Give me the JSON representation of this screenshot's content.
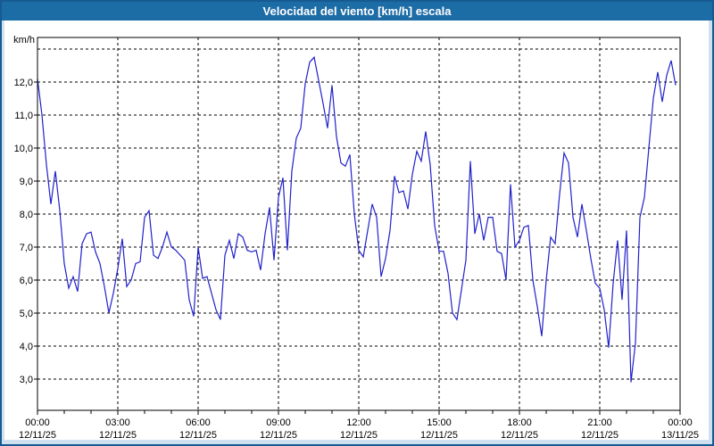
{
  "window": {
    "title": "Velocidad del viento [km/h] escala"
  },
  "colors": {
    "titlebar_bg": "#1c6ca6",
    "titlebar_text": "#ffffff",
    "window_border": "#175a92",
    "window_margin_bg": "#cfe1f1",
    "content_bg": "#ffffff",
    "plot_frame": "#000000",
    "gridline": "#000000",
    "tick_text": "#000000",
    "series_line": "#2121cc"
  },
  "y_axis": {
    "unit_label": "km/h",
    "tick_labels": [
      "12,0",
      "11,0",
      "10,0",
      "9,0",
      "8,0",
      "7,0",
      "6,0",
      "5,0",
      "4,0",
      "3,0"
    ],
    "tick_values": [
      12,
      11,
      10,
      9,
      8,
      7,
      6,
      5,
      4,
      3
    ],
    "grid_values": [
      13,
      12,
      11,
      10,
      9,
      8,
      7,
      6,
      5,
      4,
      3
    ]
  },
  "x_axis": {
    "hours_span": 24,
    "minor_tick_every_hours": 1,
    "major_tick_every_hours": 3,
    "major_ticks": [
      {
        "hour": 0,
        "time": "00:00",
        "date": "12/11/25"
      },
      {
        "hour": 3,
        "time": "03:00",
        "date": "12/11/25"
      },
      {
        "hour": 6,
        "time": "06:00",
        "date": "12/11/25"
      },
      {
        "hour": 9,
        "time": "09:00",
        "date": "12/11/25"
      },
      {
        "hour": 12,
        "time": "12:00",
        "date": "12/11/25"
      },
      {
        "hour": 15,
        "time": "15:00",
        "date": "12/11/25"
      },
      {
        "hour": 18,
        "time": "18:00",
        "date": "12/11/25"
      },
      {
        "hour": 21,
        "time": "21:00",
        "date": "12/11/25"
      },
      {
        "hour": 24,
        "time": "00:00",
        "date": "13/11/25"
      }
    ]
  },
  "chart_data": {
    "type": "line",
    "title": "Velocidad del viento [km/h] escala",
    "ylabel": "km/h",
    "xlabel": "",
    "grid": "dashed",
    "legend": "none",
    "ylim": [
      2.05,
      13.35
    ],
    "xlim_hours": [
      0,
      24
    ],
    "x_start_minutes": 0,
    "x_step_minutes": 10,
    "values": [
      12.1,
      11.0,
      9.5,
      8.3,
      9.3,
      8.1,
      6.5,
      5.75,
      6.1,
      5.65,
      7.1,
      7.4,
      7.45,
      6.85,
      6.5,
      5.8,
      5.0,
      5.6,
      6.35,
      7.25,
      5.8,
      6.0,
      6.5,
      6.55,
      7.9,
      8.1,
      6.75,
      6.65,
      7.0,
      7.45,
      7.0,
      6.9,
      6.75,
      6.6,
      5.4,
      4.9,
      7.0,
      6.05,
      6.1,
      5.6,
      5.1,
      4.8,
      6.75,
      7.2,
      6.65,
      7.4,
      7.3,
      6.9,
      6.85,
      6.9,
      6.3,
      7.4,
      8.2,
      6.6,
      8.5,
      9.1,
      6.9,
      9.3,
      10.3,
      10.6,
      11.95,
      12.6,
      12.75,
      12.05,
      11.35,
      10.6,
      11.9,
      10.35,
      9.55,
      9.45,
      9.8,
      8.0,
      6.9,
      6.7,
      7.5,
      8.3,
      7.9,
      6.1,
      6.65,
      7.5,
      9.15,
      8.65,
      8.7,
      8.15,
      9.2,
      9.9,
      9.6,
      10.5,
      9.5,
      7.65,
      6.87,
      6.87,
      6.2,
      5.0,
      4.8,
      5.7,
      6.6,
      9.6,
      7.4,
      8.0,
      7.2,
      7.9,
      7.9,
      6.87,
      6.8,
      6.0,
      8.9,
      7.0,
      7.2,
      7.6,
      7.65,
      6.0,
      5.2,
      4.3,
      6.0,
      7.3,
      7.1,
      8.6,
      9.85,
      9.55,
      7.9,
      7.3,
      8.3,
      7.5,
      6.65,
      5.9,
      5.75,
      5.1,
      3.95,
      5.9,
      7.2,
      5.4,
      7.5,
      2.9,
      4.1,
      7.9,
      8.5,
      10.0,
      11.5,
      12.3,
      11.4,
      12.2,
      12.65,
      11.9
    ]
  }
}
